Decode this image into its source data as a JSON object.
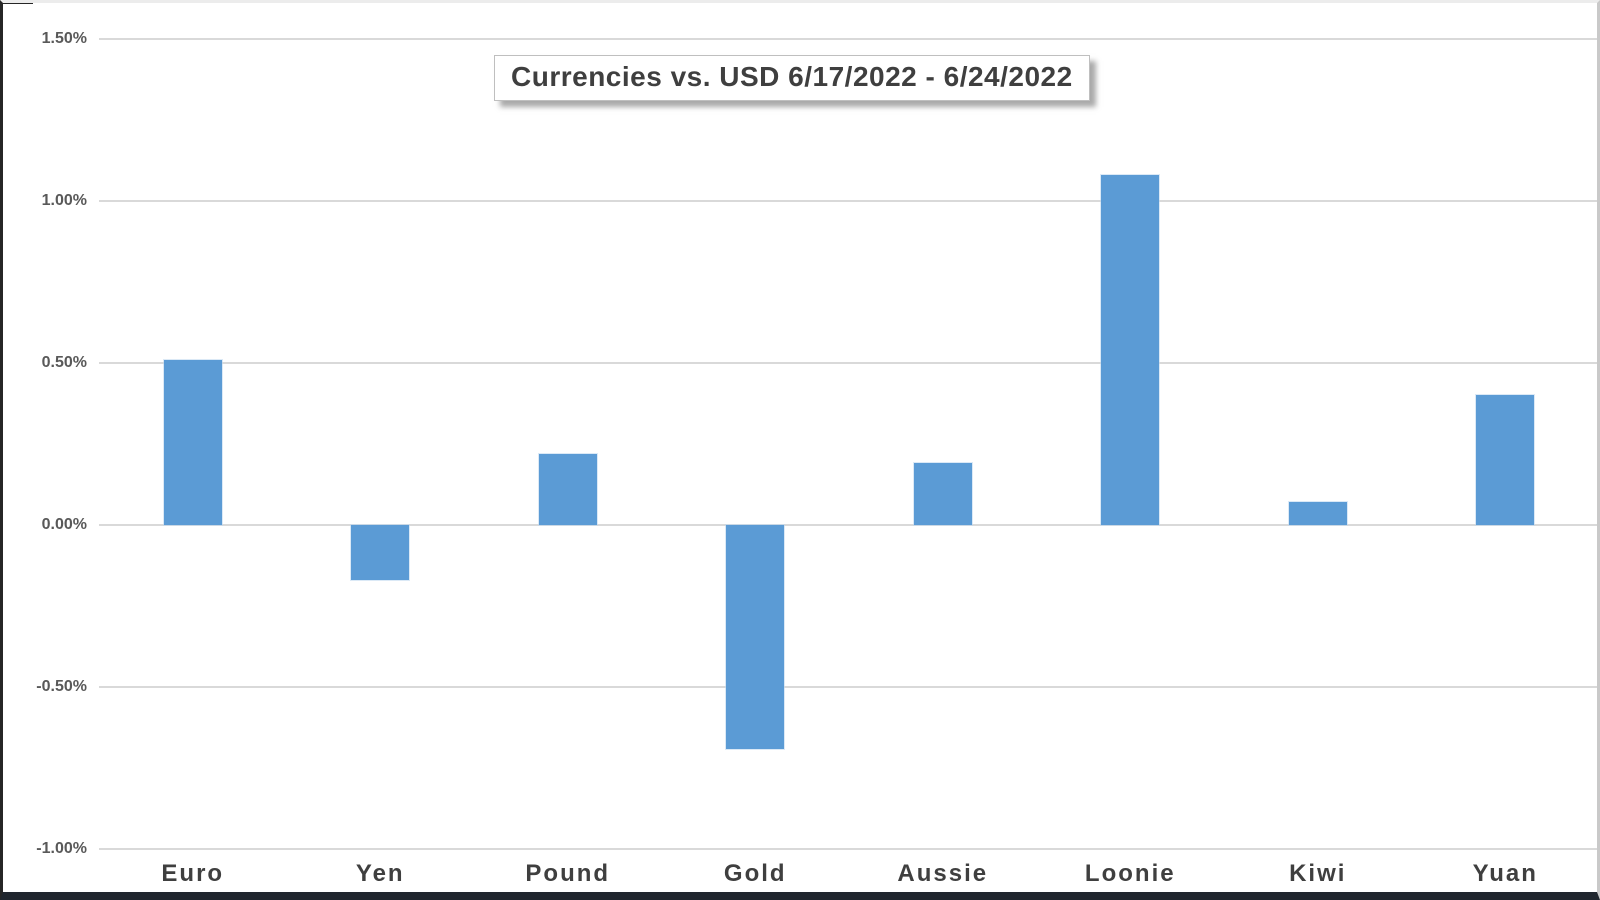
{
  "chart_data": {
    "type": "bar",
    "title": "Currencies vs. USD 6/17/2022 - 6/24/2022",
    "categories": [
      "Euro",
      "Yen",
      "Pound",
      "Gold",
      "Aussie",
      "Loonie",
      "Kiwi",
      "Yuan"
    ],
    "values": [
      0.51,
      -0.17,
      0.22,
      -0.69,
      0.19,
      1.08,
      0.07,
      0.4
    ],
    "unit": "%",
    "xlabel": "",
    "ylabel": "",
    "ylim": [
      -1.0,
      1.5
    ],
    "ytick_step": 0.5,
    "ytick_labels": [
      "1.50%",
      "1.00%",
      "0.50%",
      "0.00%",
      "-0.50%",
      "-1.00%"
    ],
    "grid": true,
    "legend_position": "none",
    "bar_color": "#5b9bd5",
    "gridline_color": "#d9d9d9",
    "tick_label_color": "#595959",
    "category_label_color": "#3f3f3f",
    "title_color": "#3f3f3f",
    "plot_background": "#ffffff"
  }
}
